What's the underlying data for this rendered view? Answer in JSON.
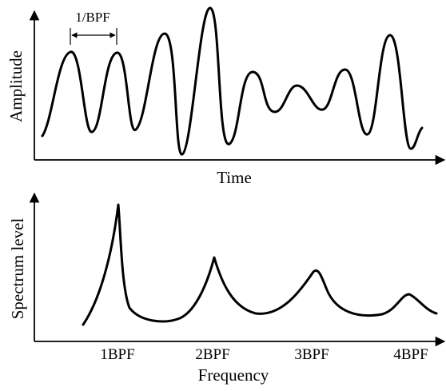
{
  "top_plot": {
    "ylabel": "Amplitude",
    "xlabel": "Time",
    "period_label": "1/BPF"
  },
  "bottom_plot": {
    "ylabel": "Spectrum level",
    "xlabel": "Frequency",
    "ticks": [
      "1BPF",
      "2BPF",
      "3BPF",
      "4BPF"
    ]
  }
}
